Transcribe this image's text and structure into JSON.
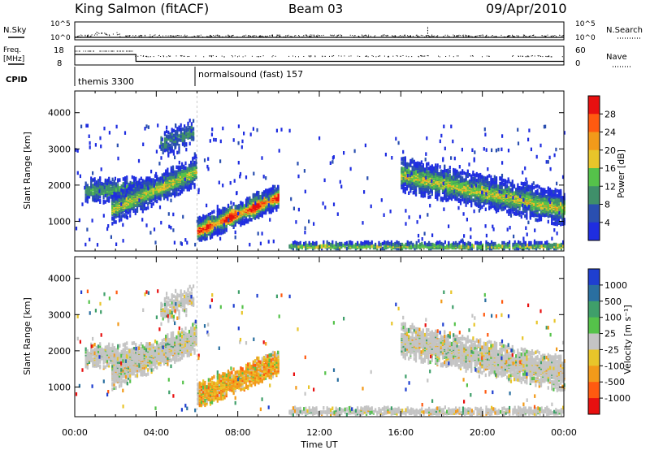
{
  "header": {
    "station": "King Salmon (fitACF)",
    "beam": "Beam 03",
    "date": "09/Apr/2010"
  },
  "status_panels": {
    "nsky_label": "N.Sky",
    "nsearch_label": "N.Search",
    "freq_label_line1": "Freq.",
    "freq_label_line2": "[MHz]",
    "nave_label": "Nave",
    "cpid_label": "CPID",
    "noise_ticks": [
      "10^5",
      "10^0"
    ],
    "freq_ticks": [
      "18",
      "8"
    ],
    "nave_ticks": [
      "60",
      "0"
    ],
    "freq_values": {
      "start_hours": [
        0,
        3,
        6
      ],
      "mhz": [
        16.5,
        10.5,
        10.5
      ]
    },
    "cpid_segments": [
      {
        "start_hour": 0,
        "text": "themis 3300"
      },
      {
        "start_hour": 6,
        "text": "normalsound (fast) 157"
      }
    ]
  },
  "chart_data": [
    {
      "type": "heatmap",
      "name": "power",
      "ylabel": "Slant Range [km]",
      "xlabel": "",
      "xlim": [
        0,
        24
      ],
      "ylim": [
        180,
        4600
      ],
      "yticks": [
        "1000",
        "2000",
        "3000",
        "4000"
      ],
      "colorbar_label": "Power [dB]",
      "colorbar_ticks": [
        "4",
        "8",
        "12",
        "16",
        "20",
        "24",
        "28"
      ],
      "colors": [
        "#1f2de0",
        "#2a4fb0",
        "#3f8f6a",
        "#55c24a",
        "#e8c52a",
        "#f29a1a",
        "#ff5a10",
        "#e81010"
      ]
    },
    {
      "type": "heatmap",
      "name": "velocity",
      "ylabel": "Slant Range [km]",
      "xlabel": "Time UT",
      "xlim": [
        0,
        24
      ],
      "ylim": [
        180,
        4600
      ],
      "yticks": [
        "1000",
        "2000",
        "3000",
        "4000"
      ],
      "xticks": [
        "00:00",
        "04:00",
        "08:00",
        "12:00",
        "16:00",
        "20:00",
        "00:00"
      ],
      "colorbar_label": "Velocity [m s⁻¹]",
      "colorbar_ticks": [
        "1000",
        "500",
        "100",
        "25",
        "-25",
        "-100",
        "-500",
        "-1000"
      ],
      "colors": [
        "#1f3fd0",
        "#2a6fa0",
        "#3f9f6a",
        "#55c24a",
        "#c4c4c4",
        "#e8c52a",
        "#f29a1a",
        "#ff5a10",
        "#e81010"
      ]
    }
  ]
}
